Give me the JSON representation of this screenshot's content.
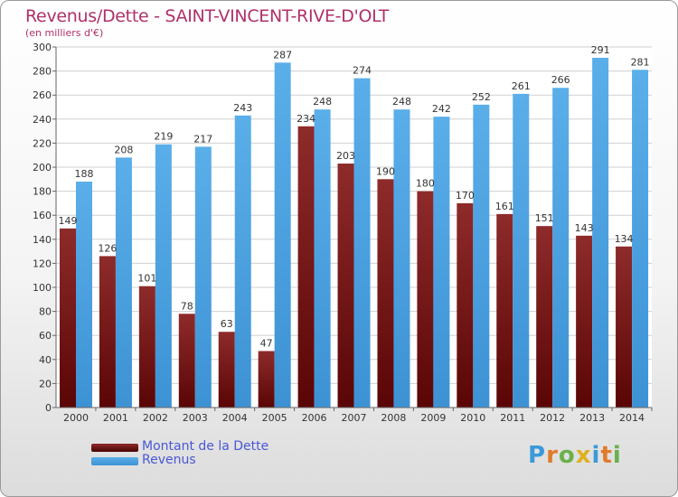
{
  "header": {
    "title": "Revenus/Dette - SAINT-VINCENT-RIVE-D'OLT",
    "subtitle": "(en milliers d'€)"
  },
  "chart_data": {
    "type": "bar",
    "categories": [
      "2000",
      "2001",
      "2002",
      "2003",
      "2004",
      "2005",
      "2006",
      "2007",
      "2008",
      "2009",
      "2010",
      "2011",
      "2012",
      "2013",
      "2014"
    ],
    "series": [
      {
        "name": "Montant de la Dette",
        "color": "#8b2525",
        "values": [
          149,
          126,
          101,
          78,
          63,
          47,
          234,
          203,
          190,
          180,
          170,
          161,
          151,
          143,
          134
        ]
      },
      {
        "name": "Revenus",
        "color": "#4da3e6",
        "values": [
          188,
          208,
          219,
          217,
          243,
          287,
          248,
          274,
          248,
          242,
          252,
          261,
          266,
          291,
          281
        ]
      }
    ],
    "yticks": [
      0,
      20,
      40,
      60,
      80,
      100,
      120,
      140,
      160,
      180,
      200,
      220,
      240,
      260,
      280,
      300
    ],
    "ylim": [
      0,
      300
    ],
    "grid": true,
    "legend_position": "bottom-left"
  },
  "legend": {
    "items": [
      {
        "label": "Montant de la Dette",
        "color": "#6b1010"
      },
      {
        "label": "Revenus",
        "color": "#4da3e6"
      }
    ]
  },
  "brand": {
    "letters": [
      "P",
      "r",
      "o",
      "x",
      "i",
      "t",
      "i"
    ],
    "colors": [
      "#3a9ad9",
      "#e07b2b",
      "#6ab04c",
      "#e0b020",
      "#3a9ad9",
      "#e07b2b",
      "#6ab04c"
    ]
  }
}
